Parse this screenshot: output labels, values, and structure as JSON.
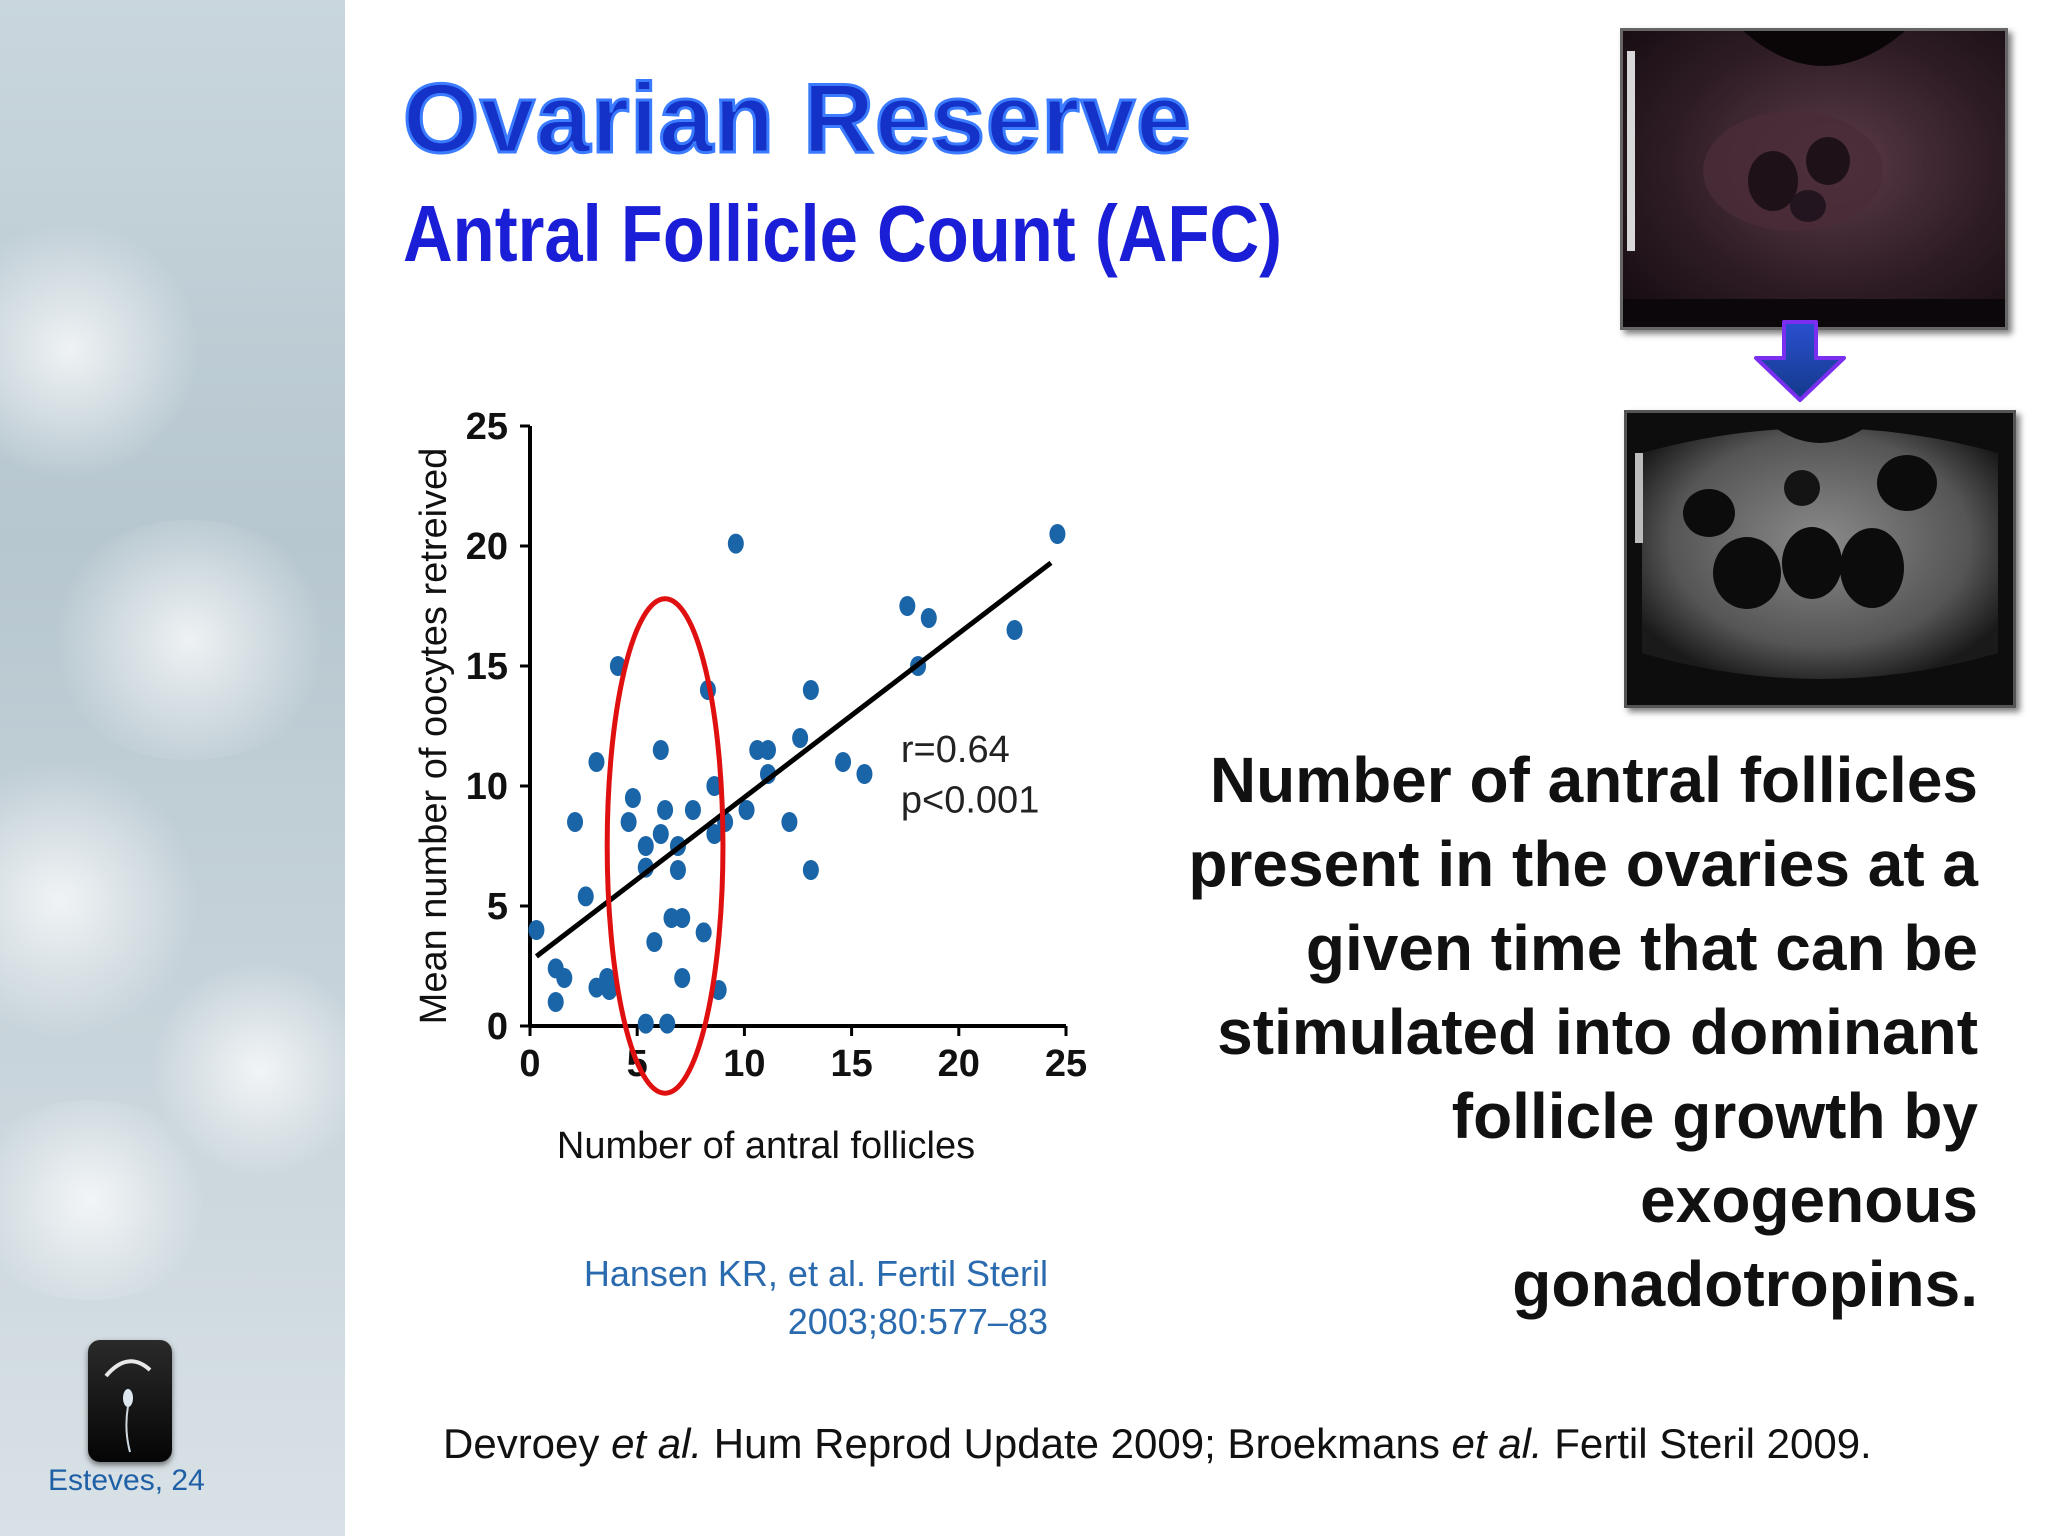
{
  "slide": {
    "title": "Ovarian Reserve",
    "subtitle": "Antral Follicle Count (AFC)",
    "description": "Number of antral follicles present in the ovaries at a given time that can be stimulated into dominant follicle growth by exogenous gonadotropins.",
    "citation_line1": "Hansen KR, et al. Fertil Steril",
    "citation_line2": "2003;80:577–83",
    "references": {
      "part1": "Devroey ",
      "etal1": "et al.",
      "part2": " Hum Reprod Update 2009; Broekmans ",
      "etal2": "et al.",
      "part3": " Fertil Steril 2009."
    },
    "sidebar_caption": "Esteves, 24"
  },
  "colors": {
    "title": "#1432c8",
    "subtitle": "#1a1ed6",
    "points": "#1a64a8",
    "trendline": "#000000",
    "highlight_ellipse": "#e01010",
    "citation": "#2a6aae",
    "arrow": "#6a2fd0"
  },
  "chart_data": {
    "type": "scatter",
    "xlabel": "Number of antral follicles",
    "ylabel": "Mean number of oocytes retreived",
    "xlim": [
      0,
      25
    ],
    "ylim": [
      0,
      25
    ],
    "xticks": [
      0,
      5,
      10,
      15,
      20,
      25
    ],
    "yticks": [
      0,
      5,
      10,
      15,
      20,
      25
    ],
    "grid": false,
    "annotation_r": "r=0.64",
    "annotation_p": "p<0.001",
    "trendline": {
      "x": [
        0.3,
        24.3
      ],
      "y": [
        2.9,
        19.3
      ]
    },
    "highlight_region": {
      "x_range": [
        3.6,
        9.0
      ],
      "y_range": [
        -2.8,
        17.8
      ]
    },
    "points": [
      [
        0.3,
        4.0
      ],
      [
        1.2,
        2.4
      ],
      [
        1.6,
        2.0
      ],
      [
        1.2,
        1.0
      ],
      [
        2.1,
        8.5
      ],
      [
        2.6,
        5.4
      ],
      [
        3.1,
        11.0
      ],
      [
        3.1,
        1.6
      ],
      [
        3.6,
        2.0
      ],
      [
        3.7,
        1.5
      ],
      [
        4.1,
        15.0
      ],
      [
        4.6,
        8.5
      ],
      [
        4.8,
        9.5
      ],
      [
        5.4,
        7.5
      ],
      [
        5.4,
        6.6
      ],
      [
        5.4,
        0.1
      ],
      [
        5.8,
        3.5
      ],
      [
        6.1,
        11.5
      ],
      [
        6.1,
        8.0
      ],
      [
        6.3,
        9.0
      ],
      [
        6.6,
        4.5
      ],
      [
        6.4,
        0.1
      ],
      [
        6.9,
        7.5
      ],
      [
        6.9,
        6.5
      ],
      [
        7.1,
        4.5
      ],
      [
        7.1,
        2.0
      ],
      [
        7.6,
        9.0
      ],
      [
        8.1,
        3.9
      ],
      [
        8.3,
        14.0
      ],
      [
        8.6,
        10.0
      ],
      [
        8.6,
        8.0
      ],
      [
        8.8,
        1.5
      ],
      [
        9.1,
        8.5
      ],
      [
        9.6,
        20.1
      ],
      [
        10.1,
        9.0
      ],
      [
        10.6,
        11.5
      ],
      [
        11.1,
        10.5
      ],
      [
        11.1,
        11.5
      ],
      [
        12.1,
        8.5
      ],
      [
        12.6,
        12.0
      ],
      [
        13.1,
        14.0
      ],
      [
        13.1,
        6.5
      ],
      [
        14.6,
        11.0
      ],
      [
        15.6,
        10.5
      ],
      [
        17.6,
        17.5
      ],
      [
        18.1,
        15.0
      ],
      [
        18.6,
        17.0
      ],
      [
        22.6,
        16.5
      ],
      [
        24.6,
        20.5
      ]
    ]
  }
}
